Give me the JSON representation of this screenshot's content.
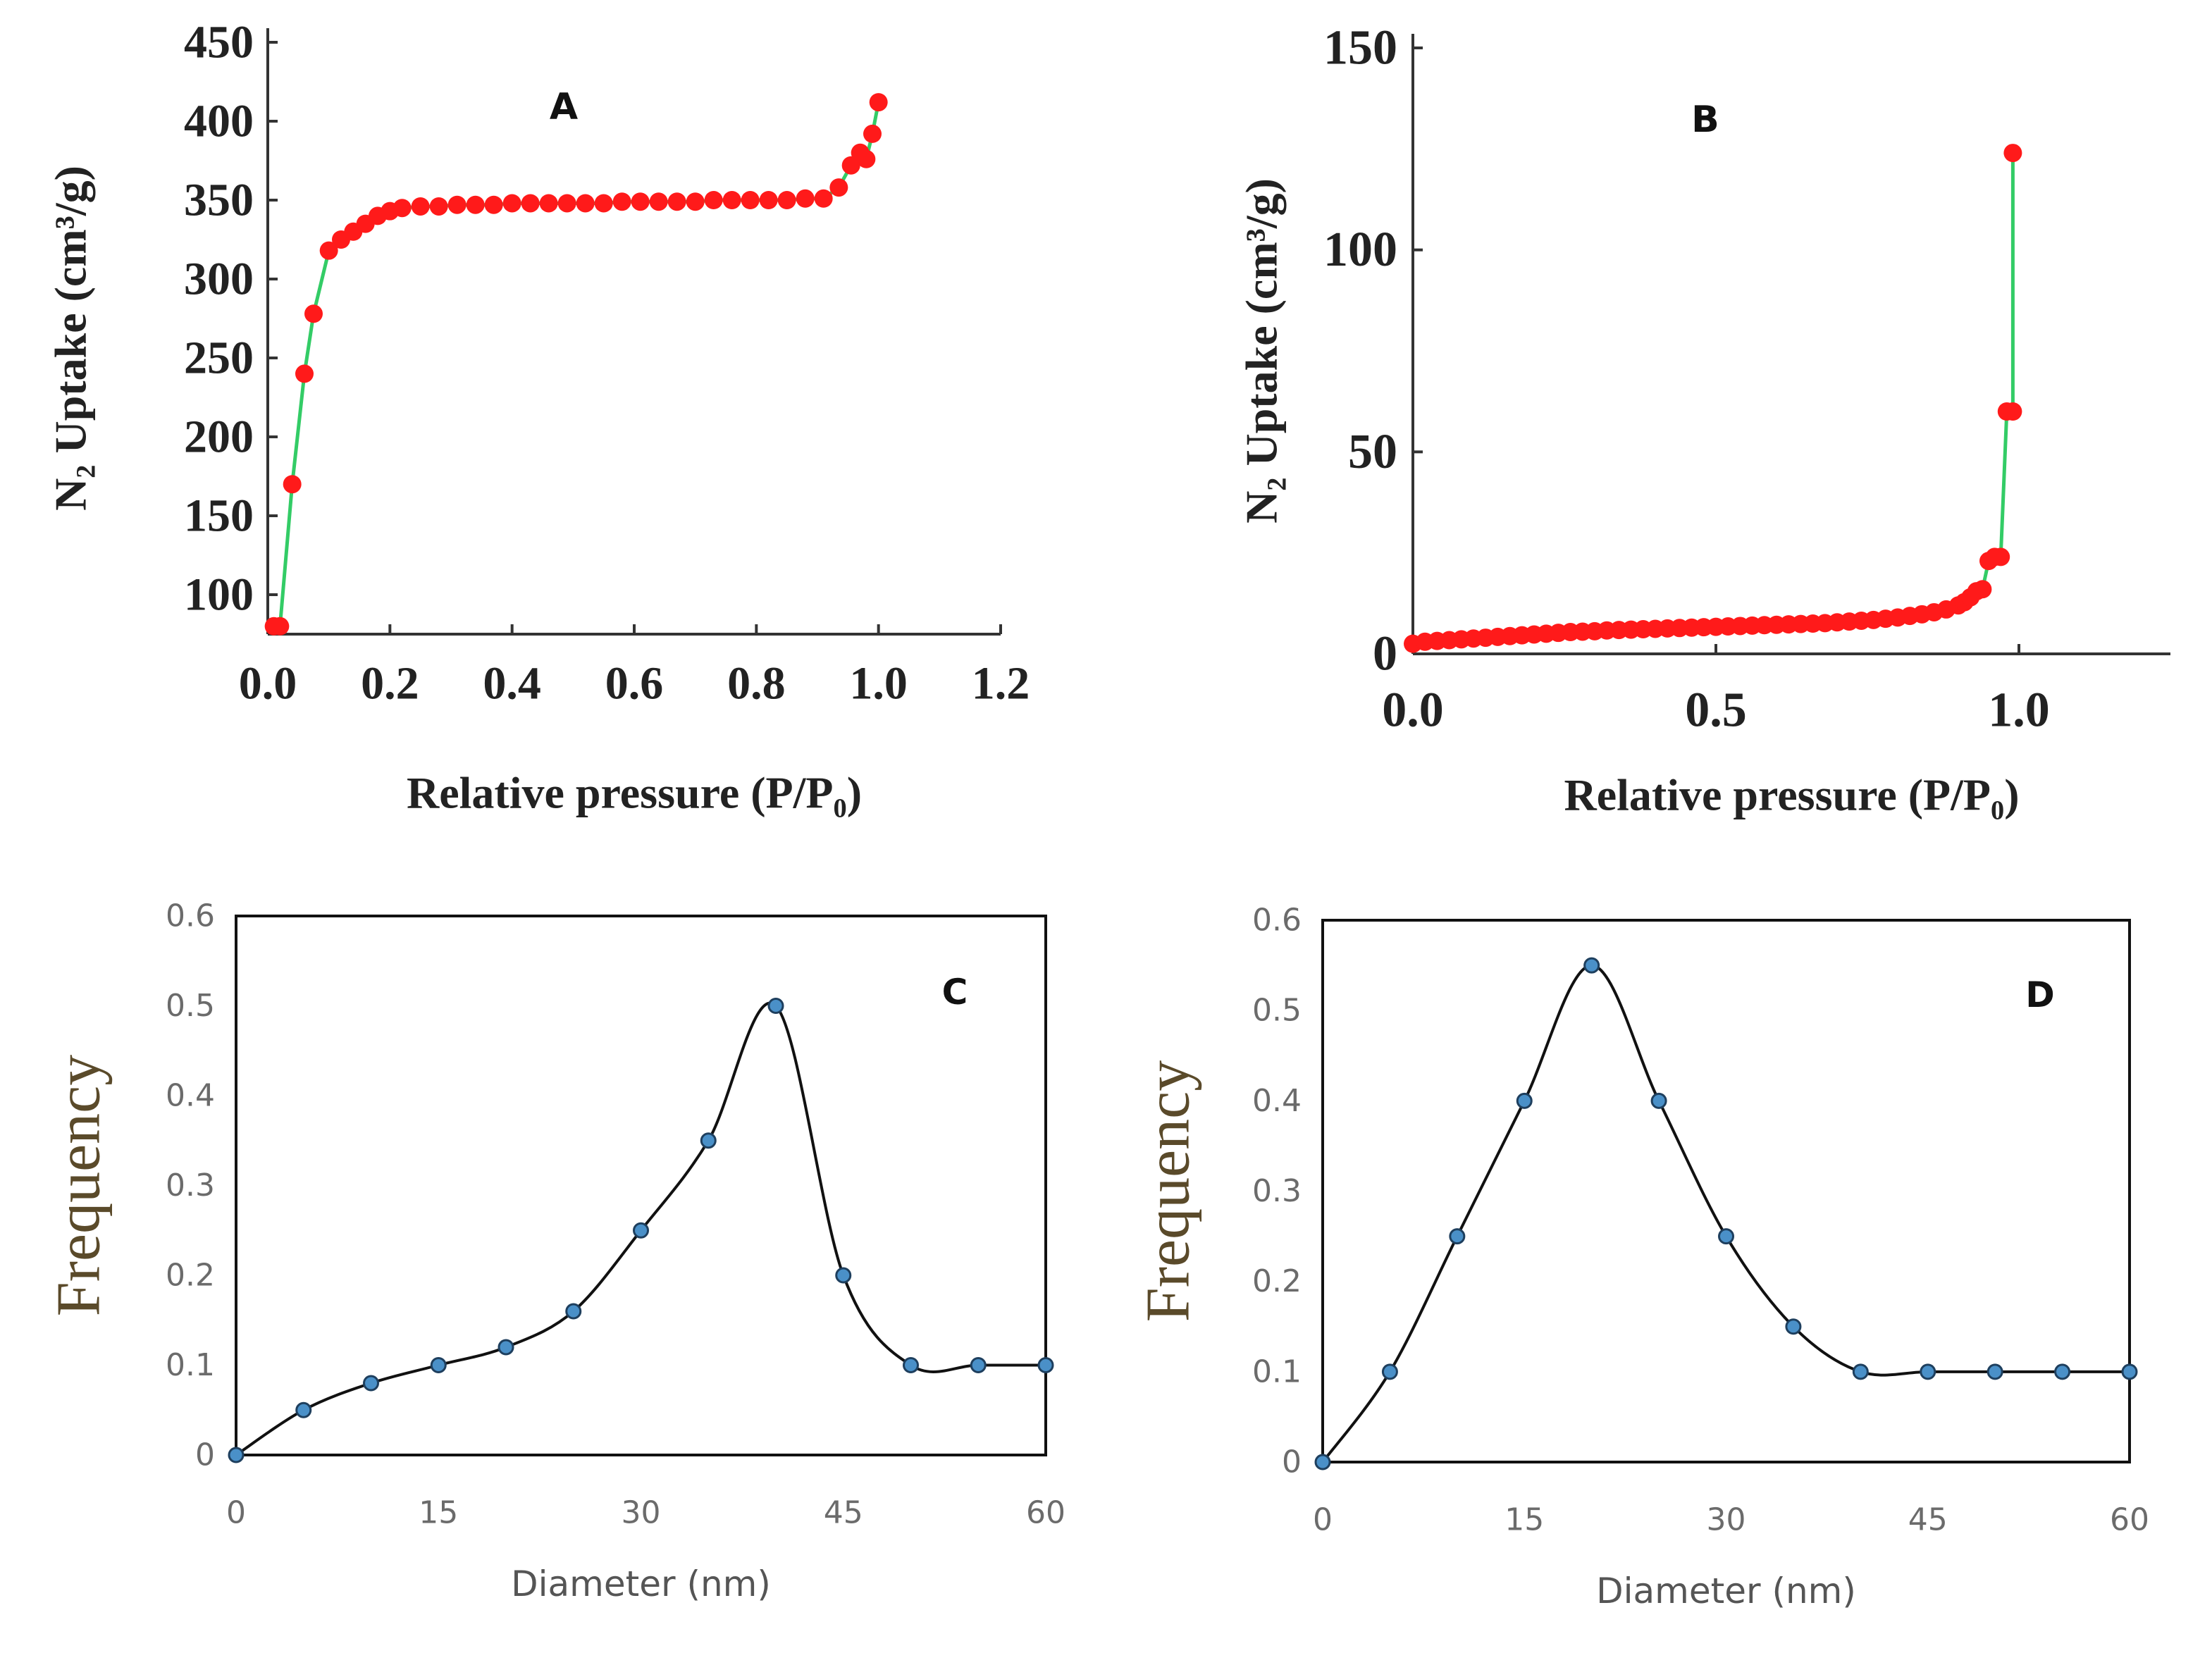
{
  "chart_data": [
    {
      "panel": "A",
      "type": "scatter",
      "panel_label": "A",
      "xlabel": "Relative pressure (P/P₀)",
      "ylabel": "N₂ Uptake (cm³/g)",
      "xlim": [
        0.0,
        1.2
      ],
      "ylim": [
        75,
        450
      ],
      "xticks": [
        0.0,
        0.2,
        0.4,
        0.6,
        0.8,
        1.0,
        1.2
      ],
      "xtick_labels": [
        "0.0",
        "0.2",
        "0.4",
        "0.6",
        "0.8",
        "1.0",
        "1.2"
      ],
      "yticks": [
        100,
        150,
        200,
        250,
        300,
        350,
        400,
        450
      ],
      "ytick_labels": [
        "100",
        "150",
        "200",
        "250",
        "300",
        "350",
        "400",
        "450"
      ],
      "grid": false,
      "line_color": "#33cc66",
      "marker_color": "#ff1a1a",
      "series": [
        {
          "x": [
            0.01,
            0.02,
            0.04,
            0.06,
            0.075,
            0.1,
            0.12,
            0.14,
            0.16,
            0.18,
            0.2,
            0.22,
            0.25,
            0.28,
            0.31,
            0.34,
            0.37,
            0.4,
            0.43,
            0.46,
            0.49,
            0.52,
            0.55,
            0.58,
            0.61,
            0.64,
            0.67,
            0.7,
            0.73,
            0.76,
            0.79,
            0.82,
            0.85,
            0.88,
            0.91,
            0.935,
            0.955,
            0.97,
            0.98,
            0.99,
            1.0
          ],
          "y": [
            80,
            80,
            170,
            240,
            278,
            318,
            325,
            330,
            335,
            340,
            343,
            345,
            346,
            346,
            347,
            347,
            347,
            348,
            348,
            348,
            348,
            348,
            348,
            349,
            349,
            349,
            349,
            349,
            350,
            350,
            350,
            350,
            350,
            351,
            351,
            358,
            372,
            380,
            376,
            392,
            412
          ]
        }
      ]
    },
    {
      "panel": "B",
      "type": "scatter",
      "panel_label": "B",
      "xlabel": "Relative pressure (P/P₀)",
      "ylabel": "N₂ Uptake (cm³/g)",
      "xlim": [
        0.0,
        1.25
      ],
      "ylim": [
        0,
        150
      ],
      "xticks": [
        0.0,
        0.5,
        1.0
      ],
      "xtick_labels": [
        "0.0",
        "0.5",
        "1.0"
      ],
      "yticks": [
        0,
        50,
        100,
        150
      ],
      "ytick_labels": [
        "0",
        "50",
        "100",
        "150"
      ],
      "grid": false,
      "line_color": "#33cc66",
      "marker_color": "#ff1a1a",
      "series": [
        {
          "x": [
            0.0,
            0.02,
            0.04,
            0.06,
            0.08,
            0.1,
            0.12,
            0.14,
            0.16,
            0.18,
            0.2,
            0.22,
            0.24,
            0.26,
            0.28,
            0.3,
            0.32,
            0.34,
            0.36,
            0.38,
            0.4,
            0.42,
            0.44,
            0.46,
            0.48,
            0.5,
            0.52,
            0.54,
            0.56,
            0.58,
            0.6,
            0.62,
            0.64,
            0.66,
            0.68,
            0.7,
            0.72,
            0.74,
            0.76,
            0.78,
            0.8,
            0.82,
            0.84,
            0.86,
            0.88,
            0.9,
            0.91,
            0.92,
            0.93,
            0.94,
            0.95,
            0.96,
            0.97,
            0.98,
            0.99,
            0.99
          ],
          "y": [
            2.5,
            3,
            3.2,
            3.4,
            3.6,
            3.8,
            4,
            4.2,
            4.4,
            4.6,
            4.8,
            5,
            5.2,
            5.4,
            5.5,
            5.6,
            5.8,
            5.9,
            6,
            6.1,
            6.2,
            6.3,
            6.4,
            6.5,
            6.6,
            6.7,
            6.8,
            6.9,
            7,
            7.1,
            7.2,
            7.3,
            7.4,
            7.5,
            7.6,
            7.8,
            8,
            8.2,
            8.4,
            8.7,
            9,
            9.4,
            9.8,
            10.3,
            11,
            12,
            12.8,
            14,
            15.5,
            16,
            23,
            24,
            24,
            60,
            60,
            124
          ]
        }
      ]
    },
    {
      "panel": "C",
      "type": "line",
      "panel_label": "C",
      "xlabel": "Diameter (nm)",
      "ylabel": "Frequency",
      "xlim": [
        0,
        60
      ],
      "ylim": [
        0,
        0.6
      ],
      "xticks": [
        0,
        15,
        30,
        45,
        60
      ],
      "xtick_labels": [
        "0",
        "15",
        "30",
        "45",
        "60"
      ],
      "yticks": [
        0,
        0.1,
        0.2,
        0.3,
        0.4,
        0.5,
        0.6
      ],
      "ytick_labels": [
        "0",
        "0.1",
        "0.2",
        "0.3",
        "0.4",
        "0.5",
        "0.6"
      ],
      "grid": false,
      "line_color": "#111111",
      "marker_color": "#4a90c8",
      "series": [
        {
          "x": [
            0,
            5,
            10,
            15,
            20,
            25,
            30,
            35,
            40,
            45,
            50,
            55,
            60
          ],
          "y": [
            0,
            0.05,
            0.08,
            0.1,
            0.12,
            0.16,
            0.25,
            0.35,
            0.5,
            0.2,
            0.1,
            0.1,
            0.1
          ]
        }
      ]
    },
    {
      "panel": "D",
      "type": "line",
      "panel_label": "D",
      "xlabel": "Diameter (nm)",
      "ylabel": "Frequency",
      "xlim": [
        0,
        60
      ],
      "ylim": [
        0,
        0.6
      ],
      "xticks": [
        0,
        15,
        30,
        45,
        60
      ],
      "xtick_labels": [
        "0",
        "15",
        "30",
        "45",
        "60"
      ],
      "yticks": [
        0,
        0.1,
        0.2,
        0.3,
        0.4,
        0.5,
        0.6
      ],
      "ytick_labels": [
        "0",
        "0.1",
        "0.2",
        "0.3",
        "0.4",
        "0.5",
        "0.6"
      ],
      "grid": false,
      "line_color": "#111111",
      "marker_color": "#4a90c8",
      "series": [
        {
          "x": [
            0,
            5,
            10,
            15,
            20,
            25,
            30,
            35,
            40,
            45,
            50,
            55,
            60
          ],
          "y": [
            0,
            0.1,
            0.25,
            0.4,
            0.55,
            0.4,
            0.25,
            0.15,
            0.1,
            0.1,
            0.1,
            0.1,
            0.1
          ]
        }
      ]
    }
  ]
}
